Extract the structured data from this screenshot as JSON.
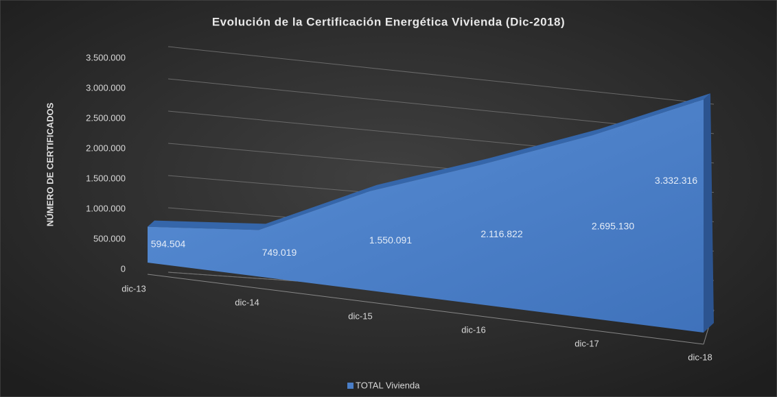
{
  "chart_data": {
    "type": "area3d",
    "title": "Evolución de la Certificación Energética Vivienda (Dic-2018)",
    "y_label": "NÚMERO DE CERTIFICADOS",
    "categories": [
      "dic-13",
      "dic-14",
      "dic-15",
      "dic-16",
      "dic-17",
      "dic-18"
    ],
    "series": [
      {
        "name": "TOTAL Vivienda",
        "color": "#4a7ec7",
        "values": [
          594504,
          749019,
          1550091,
          2116822,
          2695130,
          3332316
        ],
        "value_labels": [
          "594.504",
          "749.019",
          "1.550.091",
          "2.116.822",
          "2.695.130",
          "3.332.316"
        ]
      }
    ],
    "ylim": [
      0,
      3500000
    ],
    "yticks": [
      0,
      {
        "value": 500000,
        "label": "500.000"
      },
      {
        "value": 1000000,
        "label": "1.000.000"
      },
      {
        "value": 1500000,
        "label": "1.500.000"
      },
      {
        "value": 2000000,
        "label": "2.000.000"
      },
      {
        "value": 2500000,
        "label": "2.500.000"
      },
      {
        "value": 3000000,
        "label": "3.000.000"
      },
      {
        "value": 3500000,
        "label": "3.500.000"
      }
    ],
    "grid": true,
    "legend": "bottom"
  }
}
